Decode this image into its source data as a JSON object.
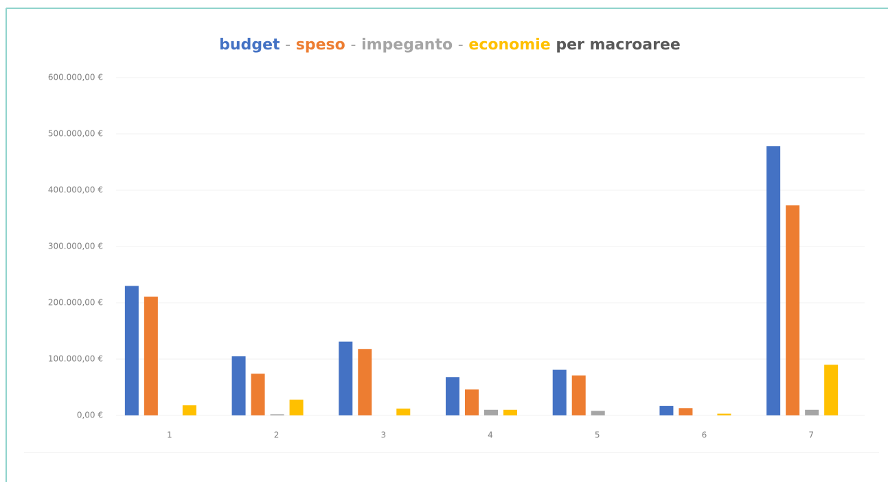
{
  "chart_data": {
    "type": "bar",
    "title_separator": "-",
    "title_suffix": "per macroaree",
    "categories": [
      "1",
      "2",
      "3",
      "4",
      "5",
      "6",
      "7"
    ],
    "series": [
      {
        "name": "budget",
        "color": "#4472c4",
        "values": [
          230000,
          105000,
          131000,
          68000,
          81000,
          17000,
          478000
        ]
      },
      {
        "name": "speso",
        "color": "#ed7d31",
        "values": [
          211000,
          74000,
          118000,
          46000,
          71000,
          13000,
          373000
        ]
      },
      {
        "name": "impeganto",
        "color": "#a5a5a5",
        "values": [
          0,
          2000,
          0,
          10000,
          8000,
          0,
          10000
        ]
      },
      {
        "name": "economie",
        "color": "#ffc000",
        "values": [
          18000,
          28000,
          12000,
          10000,
          0,
          3000,
          90000
        ]
      }
    ],
    "ylim": [
      0,
      600000
    ],
    "yticks": [
      {
        "value": 0,
        "label": "0,00 €"
      },
      {
        "value": 100000,
        "label": "100.000,00 €"
      },
      {
        "value": 200000,
        "label": "200.000,00 €"
      },
      {
        "value": 300000,
        "label": "300.000,00 €"
      },
      {
        "value": 400000,
        "label": "400.000,00 €"
      },
      {
        "value": 500000,
        "label": "500.000,00 €"
      },
      {
        "value": 600000,
        "label": "600.000,00 €"
      }
    ],
    "grid": true
  }
}
